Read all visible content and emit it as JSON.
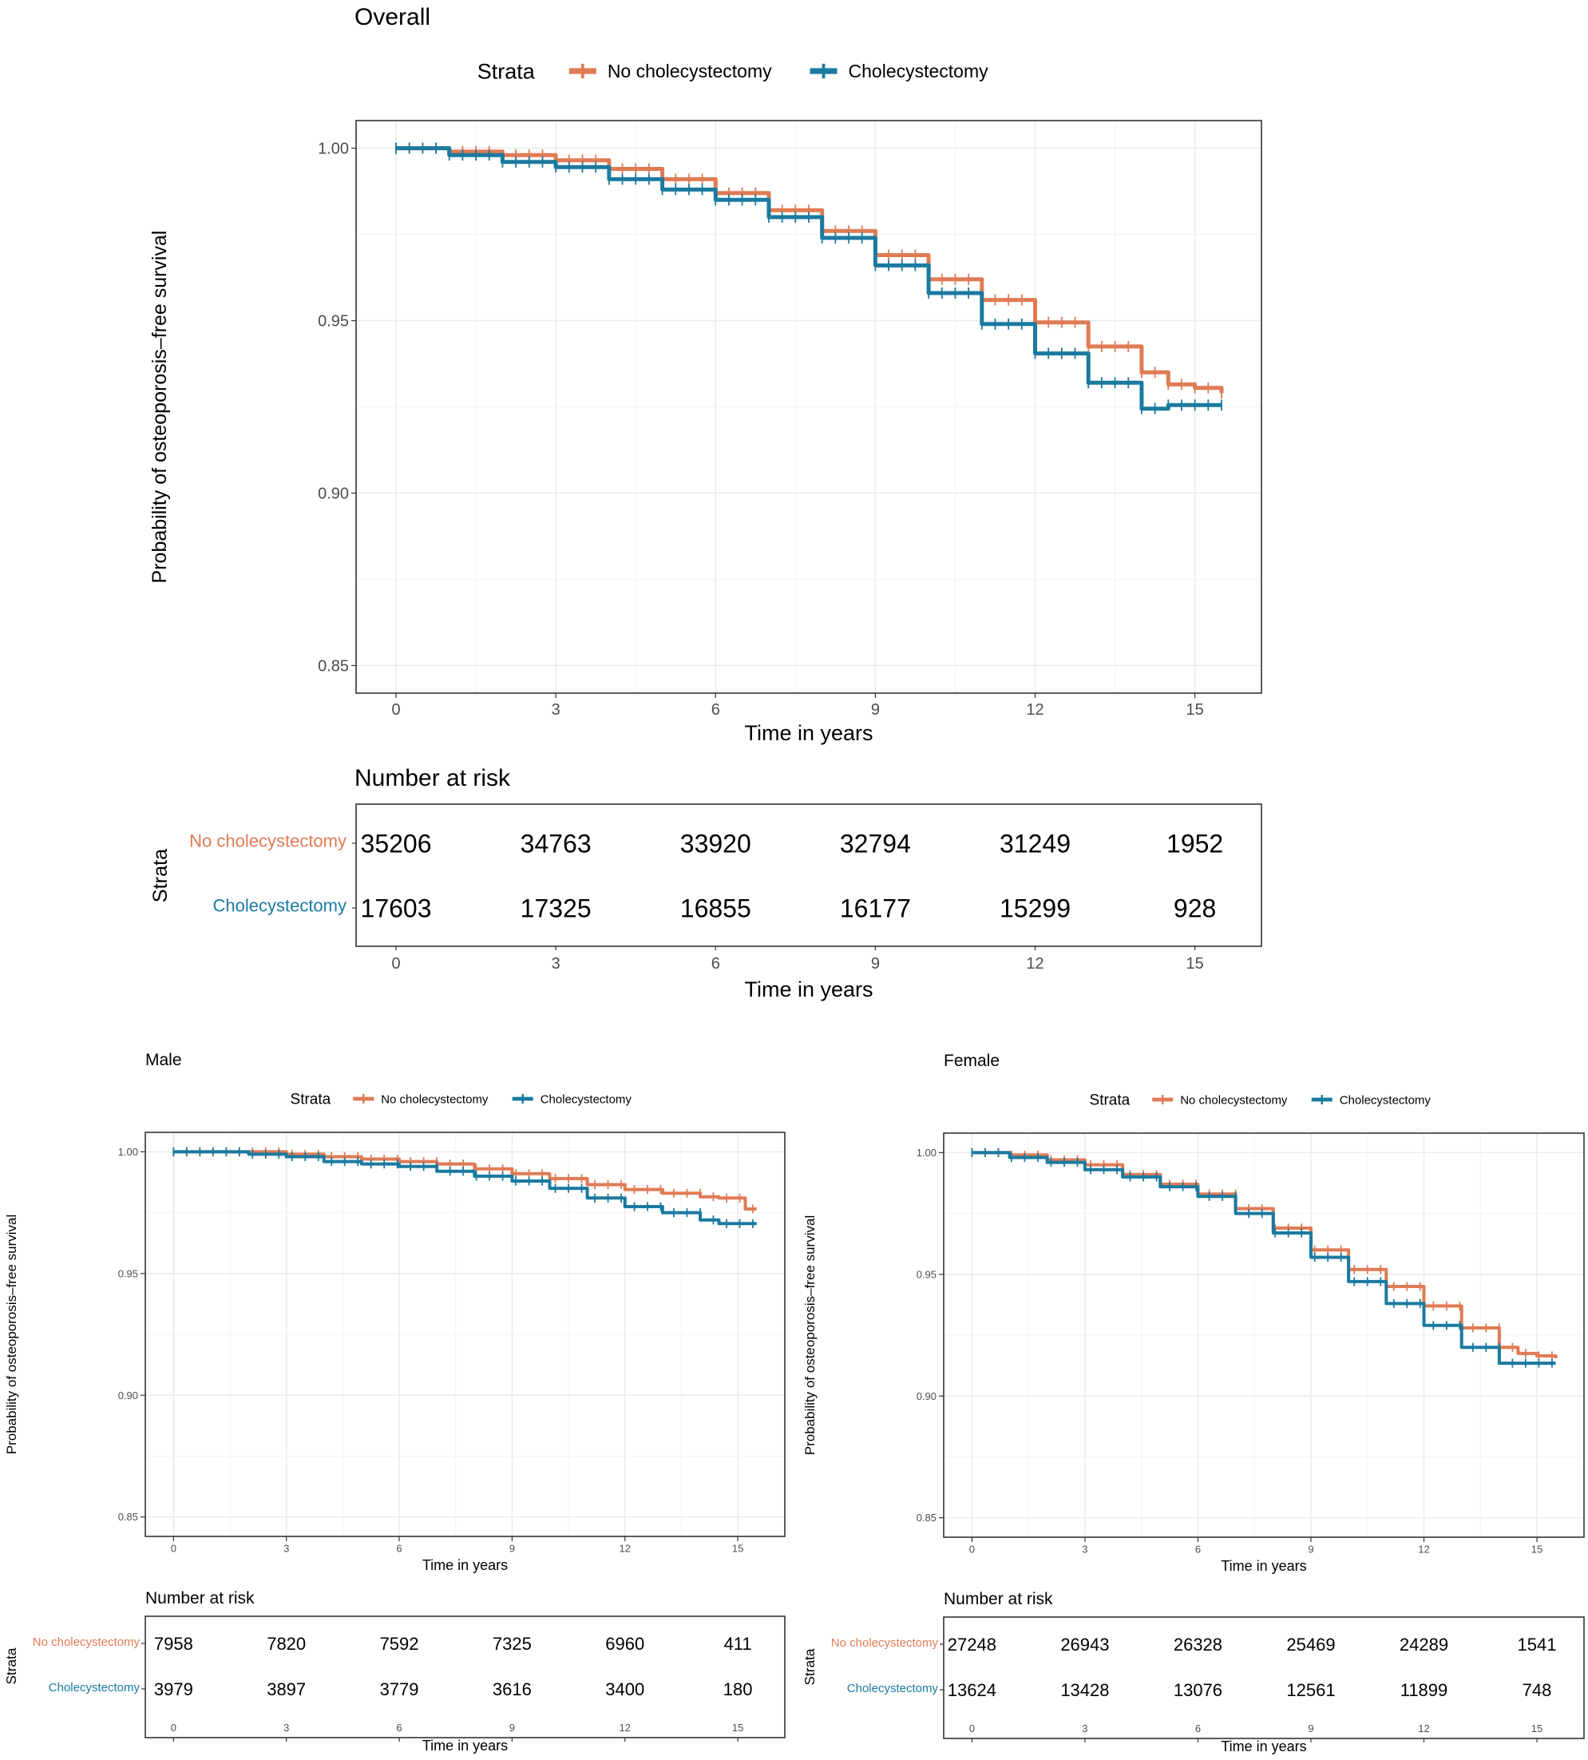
{
  "colors": {
    "no_chole": "#e07b54",
    "chole": "#1a7aa0",
    "grid": "#ebebeb",
    "axis_text": "#4d4d4d",
    "frame": "#333333"
  },
  "legend_title": "Strata",
  "chart_data": [
    {
      "id": "overall",
      "type": "line",
      "title": "Overall",
      "xlabel": "Time in years",
      "ylabel": "Probability of osteoporosis–free survival",
      "xlim": [
        -0.75,
        16.25
      ],
      "ylim": [
        0.842,
        1.008
      ],
      "x_ticks": [
        0,
        3,
        6,
        9,
        12,
        15
      ],
      "x_tick_labels": [
        "0",
        "3",
        "6",
        "9",
        "12",
        "15"
      ],
      "y_ticks": [
        0.85,
        0.9,
        0.95,
        1.0
      ],
      "y_tick_labels": [
        "0.85",
        "0.90",
        "0.95",
        "1.00"
      ],
      "series": [
        {
          "name": "No cholecystectomy",
          "color_key": "no_chole",
          "x": [
            0,
            1,
            2,
            3,
            4,
            5,
            6,
            7,
            8,
            9,
            10,
            11,
            12,
            13,
            14,
            14.5,
            15.0,
            15.5
          ],
          "y": [
            1.0,
            0.999,
            0.998,
            0.9965,
            0.994,
            0.991,
            0.987,
            0.982,
            0.976,
            0.969,
            0.962,
            0.956,
            0.9495,
            0.9425,
            0.935,
            0.9315,
            0.9305,
            0.929
          ]
        },
        {
          "name": "Cholecystectomy",
          "color_key": "chole",
          "x": [
            0,
            1,
            2,
            3,
            4,
            5,
            6,
            7,
            8,
            9,
            10,
            11,
            12,
            13,
            14,
            14.5,
            15.0,
            15.5
          ],
          "y": [
            1.0,
            0.998,
            0.996,
            0.9945,
            0.991,
            0.988,
            0.985,
            0.98,
            0.974,
            0.966,
            0.958,
            0.949,
            0.9405,
            0.932,
            0.9245,
            0.9255,
            0.9255,
            0.9255
          ]
        }
      ],
      "risk_table": {
        "title": "Number at risk",
        "strata_label": "Strata",
        "xlabel": "Time in years",
        "times": [
          0,
          3,
          6,
          9,
          12,
          15
        ],
        "rows": [
          {
            "name": "No cholecystectomy",
            "color_key": "no_chole",
            "values": [
              "35206",
              "34763",
              "33920",
              "32794",
              "31249",
              "1952"
            ]
          },
          {
            "name": "Cholecystectomy",
            "color_key": "chole",
            "values": [
              "17603",
              "17325",
              "16855",
              "16177",
              "15299",
              "928"
            ]
          }
        ]
      }
    },
    {
      "id": "male",
      "type": "line",
      "title": "Male",
      "xlabel": "Time in years",
      "ylabel": "Probability of osteoporosis–free survival",
      "xlim": [
        -0.75,
        16.25
      ],
      "ylim": [
        0.842,
        1.008
      ],
      "x_ticks": [
        0,
        3,
        6,
        9,
        12,
        15
      ],
      "x_tick_labels": [
        "0",
        "3",
        "6",
        "9",
        "12",
        "15"
      ],
      "y_ticks": [
        0.85,
        0.9,
        0.95,
        1.0
      ],
      "y_tick_labels": [
        "0.85",
        "0.90",
        "0.95",
        "1.00"
      ],
      "series": [
        {
          "name": "No cholecystectomy",
          "color_key": "no_chole",
          "x": [
            0,
            1,
            2,
            3,
            4,
            5,
            6,
            7,
            8,
            9,
            10,
            11,
            12,
            13,
            14,
            14.5,
            15.0,
            15.2,
            15.5
          ],
          "y": [
            1.0,
            1.0,
            1.0,
            0.999,
            0.998,
            0.997,
            0.996,
            0.995,
            0.993,
            0.991,
            0.989,
            0.9865,
            0.9845,
            0.983,
            0.9815,
            0.981,
            0.981,
            0.9765,
            0.9765
          ]
        },
        {
          "name": "Cholecystectomy",
          "color_key": "chole",
          "x": [
            0,
            1,
            2,
            3,
            4,
            5,
            6,
            7,
            8,
            9,
            10,
            11,
            12,
            13,
            14,
            14.5,
            15.0,
            15.5
          ],
          "y": [
            1.0,
            1.0,
            0.999,
            0.998,
            0.996,
            0.995,
            0.994,
            0.992,
            0.99,
            0.988,
            0.985,
            0.981,
            0.9775,
            0.975,
            0.972,
            0.9705,
            0.9705,
            0.9705
          ]
        }
      ],
      "risk_table": {
        "title": "Number at risk",
        "strata_label": "Strata",
        "xlabel": "Time in years",
        "times": [
          0,
          3,
          6,
          9,
          12,
          15
        ],
        "rows": [
          {
            "name": "No cholecystectomy",
            "color_key": "no_chole",
            "values": [
              "7958",
              "7820",
              "7592",
              "7325",
              "6960",
              "411"
            ]
          },
          {
            "name": "Cholecystectomy",
            "color_key": "chole",
            "values": [
              "3979",
              "3897",
              "3779",
              "3616",
              "3400",
              "180"
            ]
          }
        ]
      }
    },
    {
      "id": "female",
      "type": "line",
      "title": "Female",
      "xlabel": "Time in years",
      "ylabel": "Probability of osteoporosis–free survival",
      "xlim": [
        -0.75,
        16.25
      ],
      "ylim": [
        0.842,
        1.008
      ],
      "x_ticks": [
        0,
        3,
        6,
        9,
        12,
        15
      ],
      "x_tick_labels": [
        "0",
        "3",
        "6",
        "9",
        "12",
        "15"
      ],
      "y_ticks": [
        0.85,
        0.9,
        0.95,
        1.0
      ],
      "y_tick_labels": [
        "0.85",
        "0.90",
        "0.95",
        "1.00"
      ],
      "series": [
        {
          "name": "No cholecystectomy",
          "color_key": "no_chole",
          "x": [
            0,
            1,
            2,
            3,
            4,
            5,
            6,
            7,
            8,
            9,
            10,
            11,
            12,
            13,
            14,
            14.5,
            15.0,
            15.5
          ],
          "y": [
            1.0,
            0.999,
            0.997,
            0.995,
            0.991,
            0.987,
            0.983,
            0.977,
            0.969,
            0.96,
            0.952,
            0.945,
            0.937,
            0.928,
            0.92,
            0.9175,
            0.9165,
            0.9155
          ]
        },
        {
          "name": "Cholecystectomy",
          "color_key": "chole",
          "x": [
            0,
            1,
            2,
            3,
            4,
            5,
            6,
            7,
            8,
            9,
            10,
            11,
            12,
            13,
            14,
            14.5,
            15.0,
            15.5
          ],
          "y": [
            1.0,
            0.998,
            0.996,
            0.993,
            0.99,
            0.986,
            0.982,
            0.975,
            0.967,
            0.957,
            0.947,
            0.938,
            0.929,
            0.92,
            0.9135,
            0.9135,
            0.9135,
            0.9135
          ]
        }
      ],
      "risk_table": {
        "title": "Number at risk",
        "strata_label": "Strata",
        "xlabel": "Time in years",
        "times": [
          0,
          3,
          6,
          9,
          12,
          15
        ],
        "rows": [
          {
            "name": "No cholecystectomy",
            "color_key": "no_chole",
            "values": [
              "27248",
              "26943",
              "26328",
              "25469",
              "24289",
              "1541"
            ]
          },
          {
            "name": "Cholecystectomy",
            "color_key": "chole",
            "values": [
              "13624",
              "13428",
              "13076",
              "12561",
              "11899",
              "748"
            ]
          }
        ]
      }
    }
  ]
}
